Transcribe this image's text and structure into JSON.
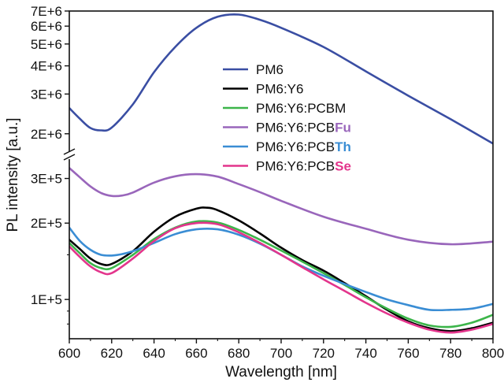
{
  "chart_data": {
    "type": "line",
    "title": "",
    "xlabel": "Wavelength [nm]",
    "ylabel": "PL intensity [a.u.]",
    "y_scale": "log",
    "y_axis_break": true,
    "x_range": [
      600,
      800
    ],
    "x_ticks": [
      "600",
      "620",
      "640",
      "660",
      "680",
      "700",
      "720",
      "740",
      "760",
      "780",
      "800"
    ],
    "upper_panel": {
      "y_range": [
        1700000,
        7000000
      ],
      "y_ticks": [
        "2E+6",
        "3E+6",
        "4E+6",
        "5E+6",
        "6E+6",
        "7E+6"
      ]
    },
    "lower_panel": {
      "y_range": [
        70000,
        350000
      ],
      "y_ticks": [
        "1E+5",
        "2E+5",
        "3E+5"
      ]
    },
    "legend": {
      "position": "upper-middle"
    },
    "series": [
      {
        "name": "PM6",
        "suffix": "",
        "color": "#3a4ea3",
        "panel": "upper",
        "x": [
          600,
          605,
          610,
          615,
          620,
          630,
          640,
          650,
          660,
          670,
          680,
          690,
          700,
          720,
          740,
          760,
          780,
          800
        ],
        "y": [
          2600000,
          2330000,
          2120000,
          2070000,
          2130000,
          2700000,
          3750000,
          4850000,
          5900000,
          6600000,
          6750000,
          6400000,
          5900000,
          4850000,
          3780000,
          2950000,
          2320000,
          1810000
        ]
      },
      {
        "name": "PM6:Y6",
        "suffix": "",
        "color": "#000000",
        "panel": "lower",
        "x": [
          600,
          605,
          610,
          615,
          620,
          630,
          640,
          650,
          660,
          665,
          670,
          680,
          690,
          700,
          710,
          720,
          730,
          740,
          750,
          760,
          770,
          780,
          790,
          800
        ],
        "y": [
          172000,
          158000,
          145000,
          138000,
          138000,
          155000,
          185000,
          212000,
          228000,
          230000,
          225000,
          205000,
          182000,
          160000,
          143000,
          130000,
          116000,
          103000,
          91000,
          82000,
          77000,
          75000,
          77000,
          81000
        ]
      },
      {
        "name": "PM6:Y6:PCBM",
        "suffix": "",
        "color": "#3cb54a",
        "panel": "lower",
        "x": [
          600,
          605,
          610,
          615,
          620,
          630,
          640,
          650,
          660,
          670,
          680,
          690,
          700,
          710,
          720,
          730,
          740,
          750,
          760,
          770,
          780,
          790,
          800
        ],
        "y": [
          167000,
          152000,
          139000,
          133000,
          133000,
          150000,
          173000,
          192000,
          203000,
          201000,
          188000,
          172000,
          156000,
          141000,
          127000,
          114000,
          102000,
          92000,
          84000,
          79000,
          78000,
          81000,
          87000
        ]
      },
      {
        "name": "PM6:Y6:PCB",
        "suffix": "Fu",
        "color": "#9966bb",
        "panel": "lower",
        "x": [
          600,
          605,
          610,
          615,
          620,
          625,
          630,
          640,
          650,
          660,
          670,
          680,
          690,
          700,
          720,
          740,
          760,
          780,
          800
        ],
        "y": [
          330000,
          303000,
          279000,
          263000,
          256000,
          257000,
          264000,
          289000,
          306000,
          312000,
          305000,
          285000,
          265000,
          245000,
          212000,
          190000,
          172000,
          165000,
          169000
        ]
      },
      {
        "name": "PM6:Y6:PCB",
        "suffix": "Th",
        "color": "#3a8dd4",
        "panel": "lower",
        "x": [
          600,
          605,
          610,
          615,
          620,
          625,
          630,
          640,
          650,
          660,
          670,
          680,
          690,
          700,
          710,
          720,
          730,
          740,
          750,
          760,
          770,
          780,
          790,
          800
        ],
        "y": [
          192000,
          170000,
          157000,
          150000,
          149000,
          151000,
          155000,
          167000,
          181000,
          189000,
          189000,
          180000,
          166000,
          150000,
          135000,
          124000,
          115000,
          107000,
          100000,
          95000,
          91000,
          91000,
          92000,
          96000
        ]
      },
      {
        "name": "PM6:Y6:PCB",
        "suffix": "Se",
        "color": "#e3358c",
        "panel": "lower",
        "x": [
          600,
          605,
          610,
          615,
          620,
          630,
          640,
          650,
          660,
          670,
          680,
          690,
          700,
          710,
          720,
          730,
          740,
          750,
          760,
          770,
          780,
          790,
          800
        ],
        "y": [
          162000,
          147000,
          135000,
          128000,
          127000,
          145000,
          170000,
          191000,
          200000,
          198000,
          184000,
          167000,
          150000,
          134000,
          120000,
          108000,
          97000,
          88000,
          81000,
          76000,
          74000,
          76000,
          80000
        ]
      }
    ]
  }
}
